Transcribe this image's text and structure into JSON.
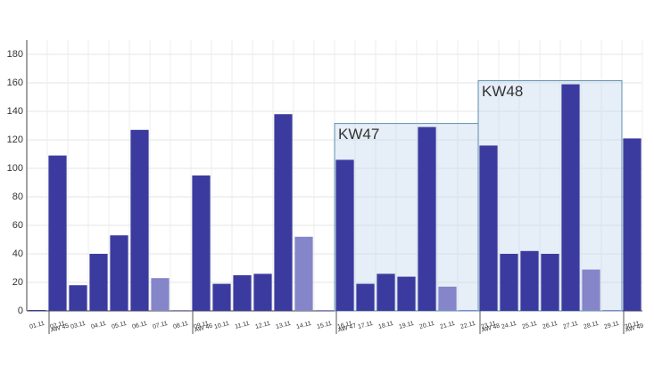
{
  "chart_data": {
    "type": "bar",
    "categories": [
      "01.11",
      "02.11",
      "03.11",
      "04.11",
      "05.11",
      "06.11",
      "07.11",
      "08.11",
      "09.11",
      "10.11",
      "11.11",
      "12.11",
      "13.11",
      "14.11",
      "15.11",
      "16.11",
      "17.11",
      "18.11",
      "19.11",
      "20.11",
      "21.11",
      "22.11",
      "23.11",
      "24.11",
      "25.11",
      "26.11",
      "27.11",
      "28.11",
      "29.11",
      "30.11"
    ],
    "values": [
      0,
      109,
      18,
      40,
      53,
      127,
      23,
      0,
      95,
      19,
      25,
      26,
      138,
      52,
      0,
      106,
      19,
      26,
      24,
      129,
      17,
      0,
      116,
      40,
      42,
      40,
      159,
      29,
      0,
      121
    ],
    "colors": [
      "#3b3b9f",
      "#3b3b9f",
      "#3b3b9f",
      "#3b3b9f",
      "#3b3b9f",
      "#3b3b9f",
      "#8585c9",
      "#8585c9",
      "#3b3b9f",
      "#3b3b9f",
      "#3b3b9f",
      "#3b3b9f",
      "#3b3b9f",
      "#8585c9",
      "#8585c9",
      "#3b3b9f",
      "#3b3b9f",
      "#3b3b9f",
      "#3b3b9f",
      "#3b3b9f",
      "#8585c9",
      "#8585c9",
      "#3b3b9f",
      "#3b3b9f",
      "#3b3b9f",
      "#3b3b9f",
      "#3b3b9f",
      "#8585c9",
      "#8585c9",
      "#3b3b9f"
    ],
    "week_labels": [
      {
        "at": "02.11",
        "label": "AW 45"
      },
      {
        "at": "09.11",
        "label": "AW 46"
      },
      {
        "at": "16.11",
        "label": "AW 47"
      },
      {
        "at": "23.11",
        "label": "AW 48"
      },
      {
        "at": "30.11",
        "label": "AW 49"
      }
    ],
    "highlights": [
      {
        "label": "KW47",
        "from": "16.11",
        "to": "22.11"
      },
      {
        "label": "KW48",
        "from": "23.11",
        "to": "29.11"
      }
    ],
    "ylim": [
      0,
      190
    ],
    "yticks": [
      0,
      20,
      40,
      60,
      80,
      100,
      120,
      140,
      160,
      180
    ],
    "grid": true
  }
}
